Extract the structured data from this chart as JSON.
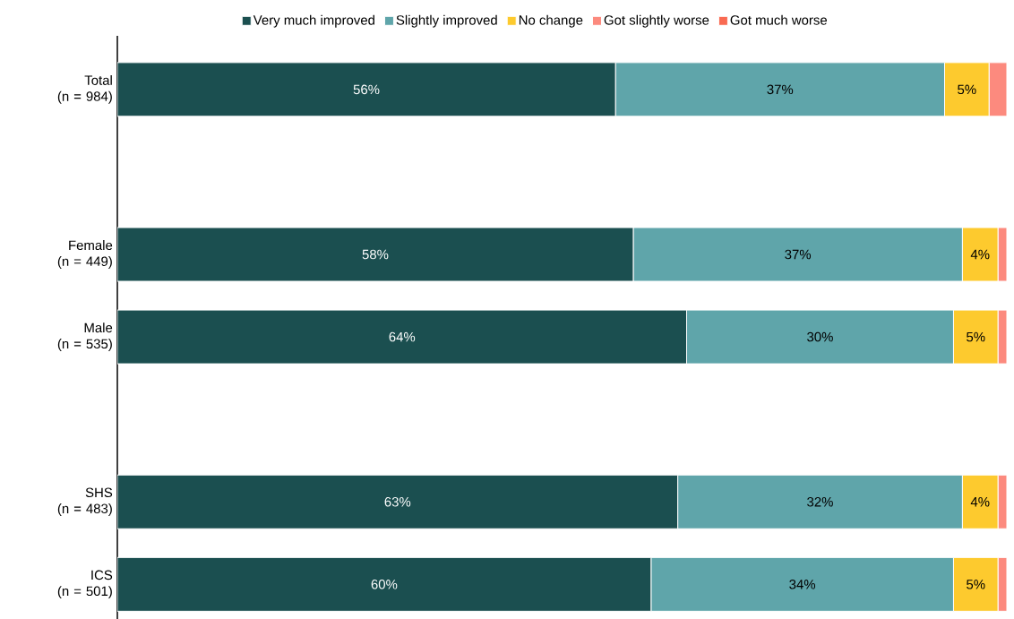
{
  "chart_data": {
    "type": "bar",
    "orientation": "horizontal",
    "stacked": true,
    "legend": "top",
    "tick_labels": "y",
    "categories": [
      "Total\n(n = 984)",
      null,
      "Female\n(n = 449)",
      "Male\n(n = 535)",
      null,
      "SHS\n(n = 483)",
      "ICS\n(n = 501)"
    ],
    "series": [
      {
        "name": "Very much improved",
        "color": "#1b4f50",
        "values": [
          56,
          null,
          58,
          64,
          null,
          63,
          60
        ],
        "value_labels": [
          "56%",
          null,
          "58%",
          "64%",
          null,
          "63%",
          "60%"
        ]
      },
      {
        "name": "Slightly improved",
        "color": "#5fa5aa",
        "values": [
          37,
          null,
          37,
          30,
          null,
          32,
          34
        ],
        "value_labels": [
          "37%",
          null,
          "37%",
          "30%",
          null,
          "32%",
          "34%"
        ]
      },
      {
        "name": "No change",
        "color": "#fdca2e",
        "values": [
          5,
          null,
          4,
          5,
          null,
          4,
          5
        ],
        "value_labels": [
          "5%",
          null,
          "4%",
          "5%",
          null,
          "4%",
          "5%"
        ]
      },
      {
        "name": "Got slightly worse",
        "color": "#fc8a7e",
        "values": [
          2,
          null,
          1,
          1,
          null,
          1,
          1
        ]
      },
      {
        "name": "Got much worse",
        "color": "#f96a52",
        "values": [
          0,
          null,
          0,
          0,
          null,
          0,
          0
        ]
      }
    ]
  }
}
